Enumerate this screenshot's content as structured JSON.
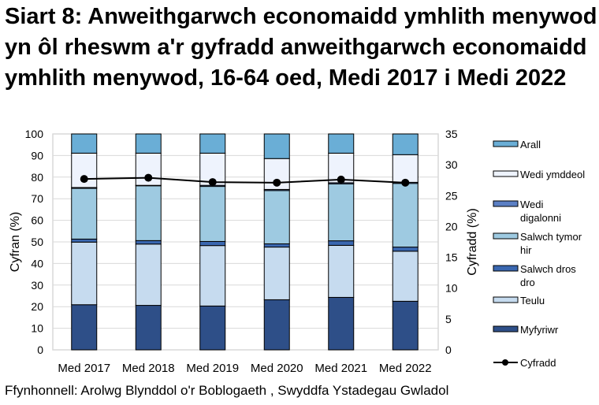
{
  "chart_data": {
    "type": "bar",
    "stacked": true,
    "title": "Siart 8: Anweithgarwch economaidd ymhlith menywod yn ôl rheswm a'r gyfradd anweithgarwch economaidd ymhlith menywod, 16-64 oed, Medi 2017 i Medi 2022",
    "ylabel": "Cyfran (%)",
    "y2label": "Cyfradd (%)",
    "ylim": [
      0,
      100
    ],
    "y2lim": [
      0,
      35
    ],
    "yticks": [
      0,
      10,
      20,
      30,
      40,
      50,
      60,
      70,
      80,
      90,
      100
    ],
    "y2ticks": [
      0,
      5,
      10,
      15,
      20,
      25,
      30,
      35
    ],
    "grid": true,
    "legend": "right",
    "categories": [
      "Med 2017",
      "Med 2018",
      "Med 2019",
      "Med 2020",
      "Med 2021",
      "Med 2022"
    ],
    "series": [
      {
        "name": "Myfyriwr",
        "color": "#2e4f88",
        "values": [
          20.9,
          20.6,
          20.3,
          23.2,
          24.3,
          22.5
        ]
      },
      {
        "name": "Teulu",
        "color": "#c6dbef",
        "values": [
          29.0,
          28.4,
          28.0,
          24.4,
          24.1,
          23.2
        ]
      },
      {
        "name": "Salwch dros dro",
        "color": "#3a67b0",
        "values": [
          1.4,
          1.6,
          1.9,
          1.5,
          2.1,
          1.9
        ]
      },
      {
        "name": "Salwch tymor hir",
        "color": "#9ecae1",
        "values": [
          23.5,
          25.4,
          25.5,
          24.7,
          26.4,
          29.5
        ]
      },
      {
        "name": "Wedi digalonni",
        "color": "#5b7fc4",
        "values": [
          0.4,
          0.2,
          0.5,
          0.5,
          0.5,
          0.5
        ]
      },
      {
        "name": "Wedi ymddeol",
        "color": "#eef3fd",
        "values": [
          15.9,
          14.9,
          14.9,
          14.3,
          13.7,
          12.8
        ]
      },
      {
        "name": "Arall",
        "color": "#6aaed6",
        "values": [
          8.9,
          8.9,
          8.9,
          11.4,
          8.9,
          9.6
        ]
      }
    ],
    "line_series": {
      "name": "Cyfradd",
      "axis": "secondary",
      "color": "#000000",
      "values": [
        27.7,
        27.9,
        27.2,
        27.1,
        27.6,
        27.1
      ]
    }
  },
  "source": "Ffynhonnell: Arolwg Blynddol o'r Boblogaeth  , Swyddfa Ystadegau Gwladol"
}
